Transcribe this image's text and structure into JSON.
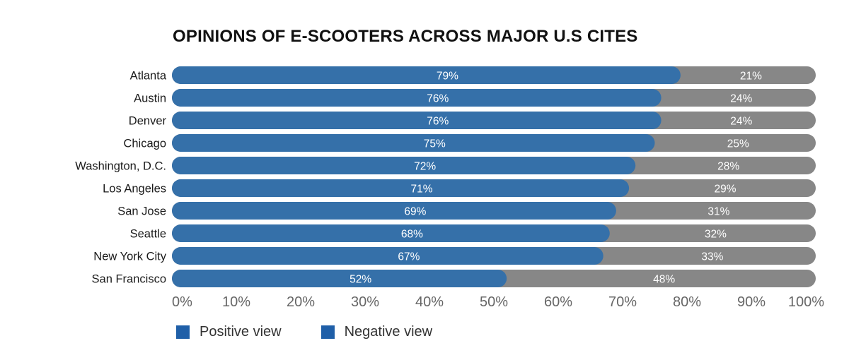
{
  "chart_data": {
    "type": "bar",
    "orientation": "horizontal",
    "stacked": true,
    "title": "OPINIONS OF E-SCOOTERS ACROSS MAJOR U.S CITES",
    "xlabel": "",
    "ylabel": "",
    "xlim": [
      0,
      100
    ],
    "x_ticks": [
      "0%",
      "10%",
      "20%",
      "30%",
      "40%",
      "50%",
      "60%",
      "70%",
      "80%",
      "90%",
      "100%"
    ],
    "grid": false,
    "legend_position": "bottom-left",
    "categories": [
      "Atlanta",
      "Austin",
      "Denver",
      "Chicago",
      "Washington, D.C.",
      "Los Angeles",
      "San Jose",
      "Seattle",
      "New York City",
      "San Francisco"
    ],
    "series": [
      {
        "name": "Positive view",
        "color": "#3570a9",
        "values": [
          79,
          76,
          76,
          75,
          72,
          71,
          69,
          68,
          67,
          52
        ]
      },
      {
        "name": "Negative view",
        "color": "#878787",
        "values": [
          21,
          24,
          24,
          25,
          28,
          29,
          31,
          32,
          33,
          48
        ]
      }
    ],
    "value_label_suffix": "%"
  },
  "legend": [
    {
      "label": "Positive view",
      "swatch_color": "#1f5fa8"
    },
    {
      "label": "Negative view",
      "swatch_color": "#1f5fa8"
    }
  ]
}
